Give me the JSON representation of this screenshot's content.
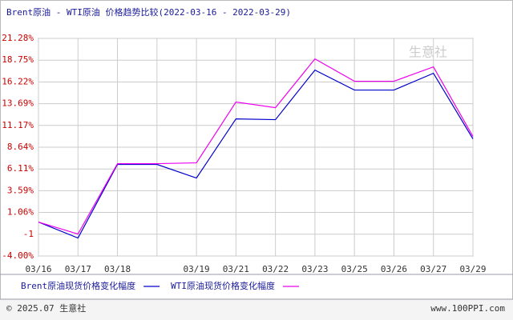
{
  "chart_data": {
    "type": "line",
    "title": "Brent原油 - WTI原油 价格趋势比较(2022-03-16 - 2022-03-29)",
    "categories": [
      "03/16",
      "03/17",
      "03/18",
      null,
      "03/19",
      "03/21",
      "03/22",
      "03/23",
      "03/25",
      "03/26",
      "03/27",
      "03/29"
    ],
    "series": [
      {
        "name": "Brent原油现货价格变化幅度",
        "color": "#0000cc",
        "values": [
          -0.06,
          -1.91,
          6.64,
          6.64,
          5.06,
          11.93,
          11.84,
          17.6,
          15.28,
          15.28,
          17.23,
          9.61
        ]
      },
      {
        "name": "WTI原油现货价格变化幅度",
        "color": "#ee00ee",
        "values": [
          -0.06,
          -1.45,
          6.73,
          6.73,
          6.82,
          13.89,
          13.23,
          18.9,
          16.3,
          16.3,
          17.97,
          9.89
        ]
      }
    ],
    "ylim": [
      -4.0,
      21.28
    ],
    "yticks": [
      {
        "value": -4.0,
        "label": "-4.00%"
      },
      {
        "value": -1.47,
        "label": "-1"
      },
      {
        "value": 1.06,
        "label": "1.06%"
      },
      {
        "value": 3.59,
        "label": "3.59%"
      },
      {
        "value": 6.11,
        "label": "6.11%"
      },
      {
        "value": 8.64,
        "label": "8.64%"
      },
      {
        "value": 11.17,
        "label": "11.17%"
      },
      {
        "value": 13.69,
        "label": "13.69%"
      },
      {
        "value": 16.22,
        "label": "16.22%"
      },
      {
        "value": 18.75,
        "label": "18.75%"
      },
      {
        "value": 21.28,
        "label": "21.28%"
      }
    ],
    "grid": true,
    "watermark": "生意社",
    "footer_left": "© 2025.07 生意社",
    "footer_right": "www.100PPI.com"
  }
}
